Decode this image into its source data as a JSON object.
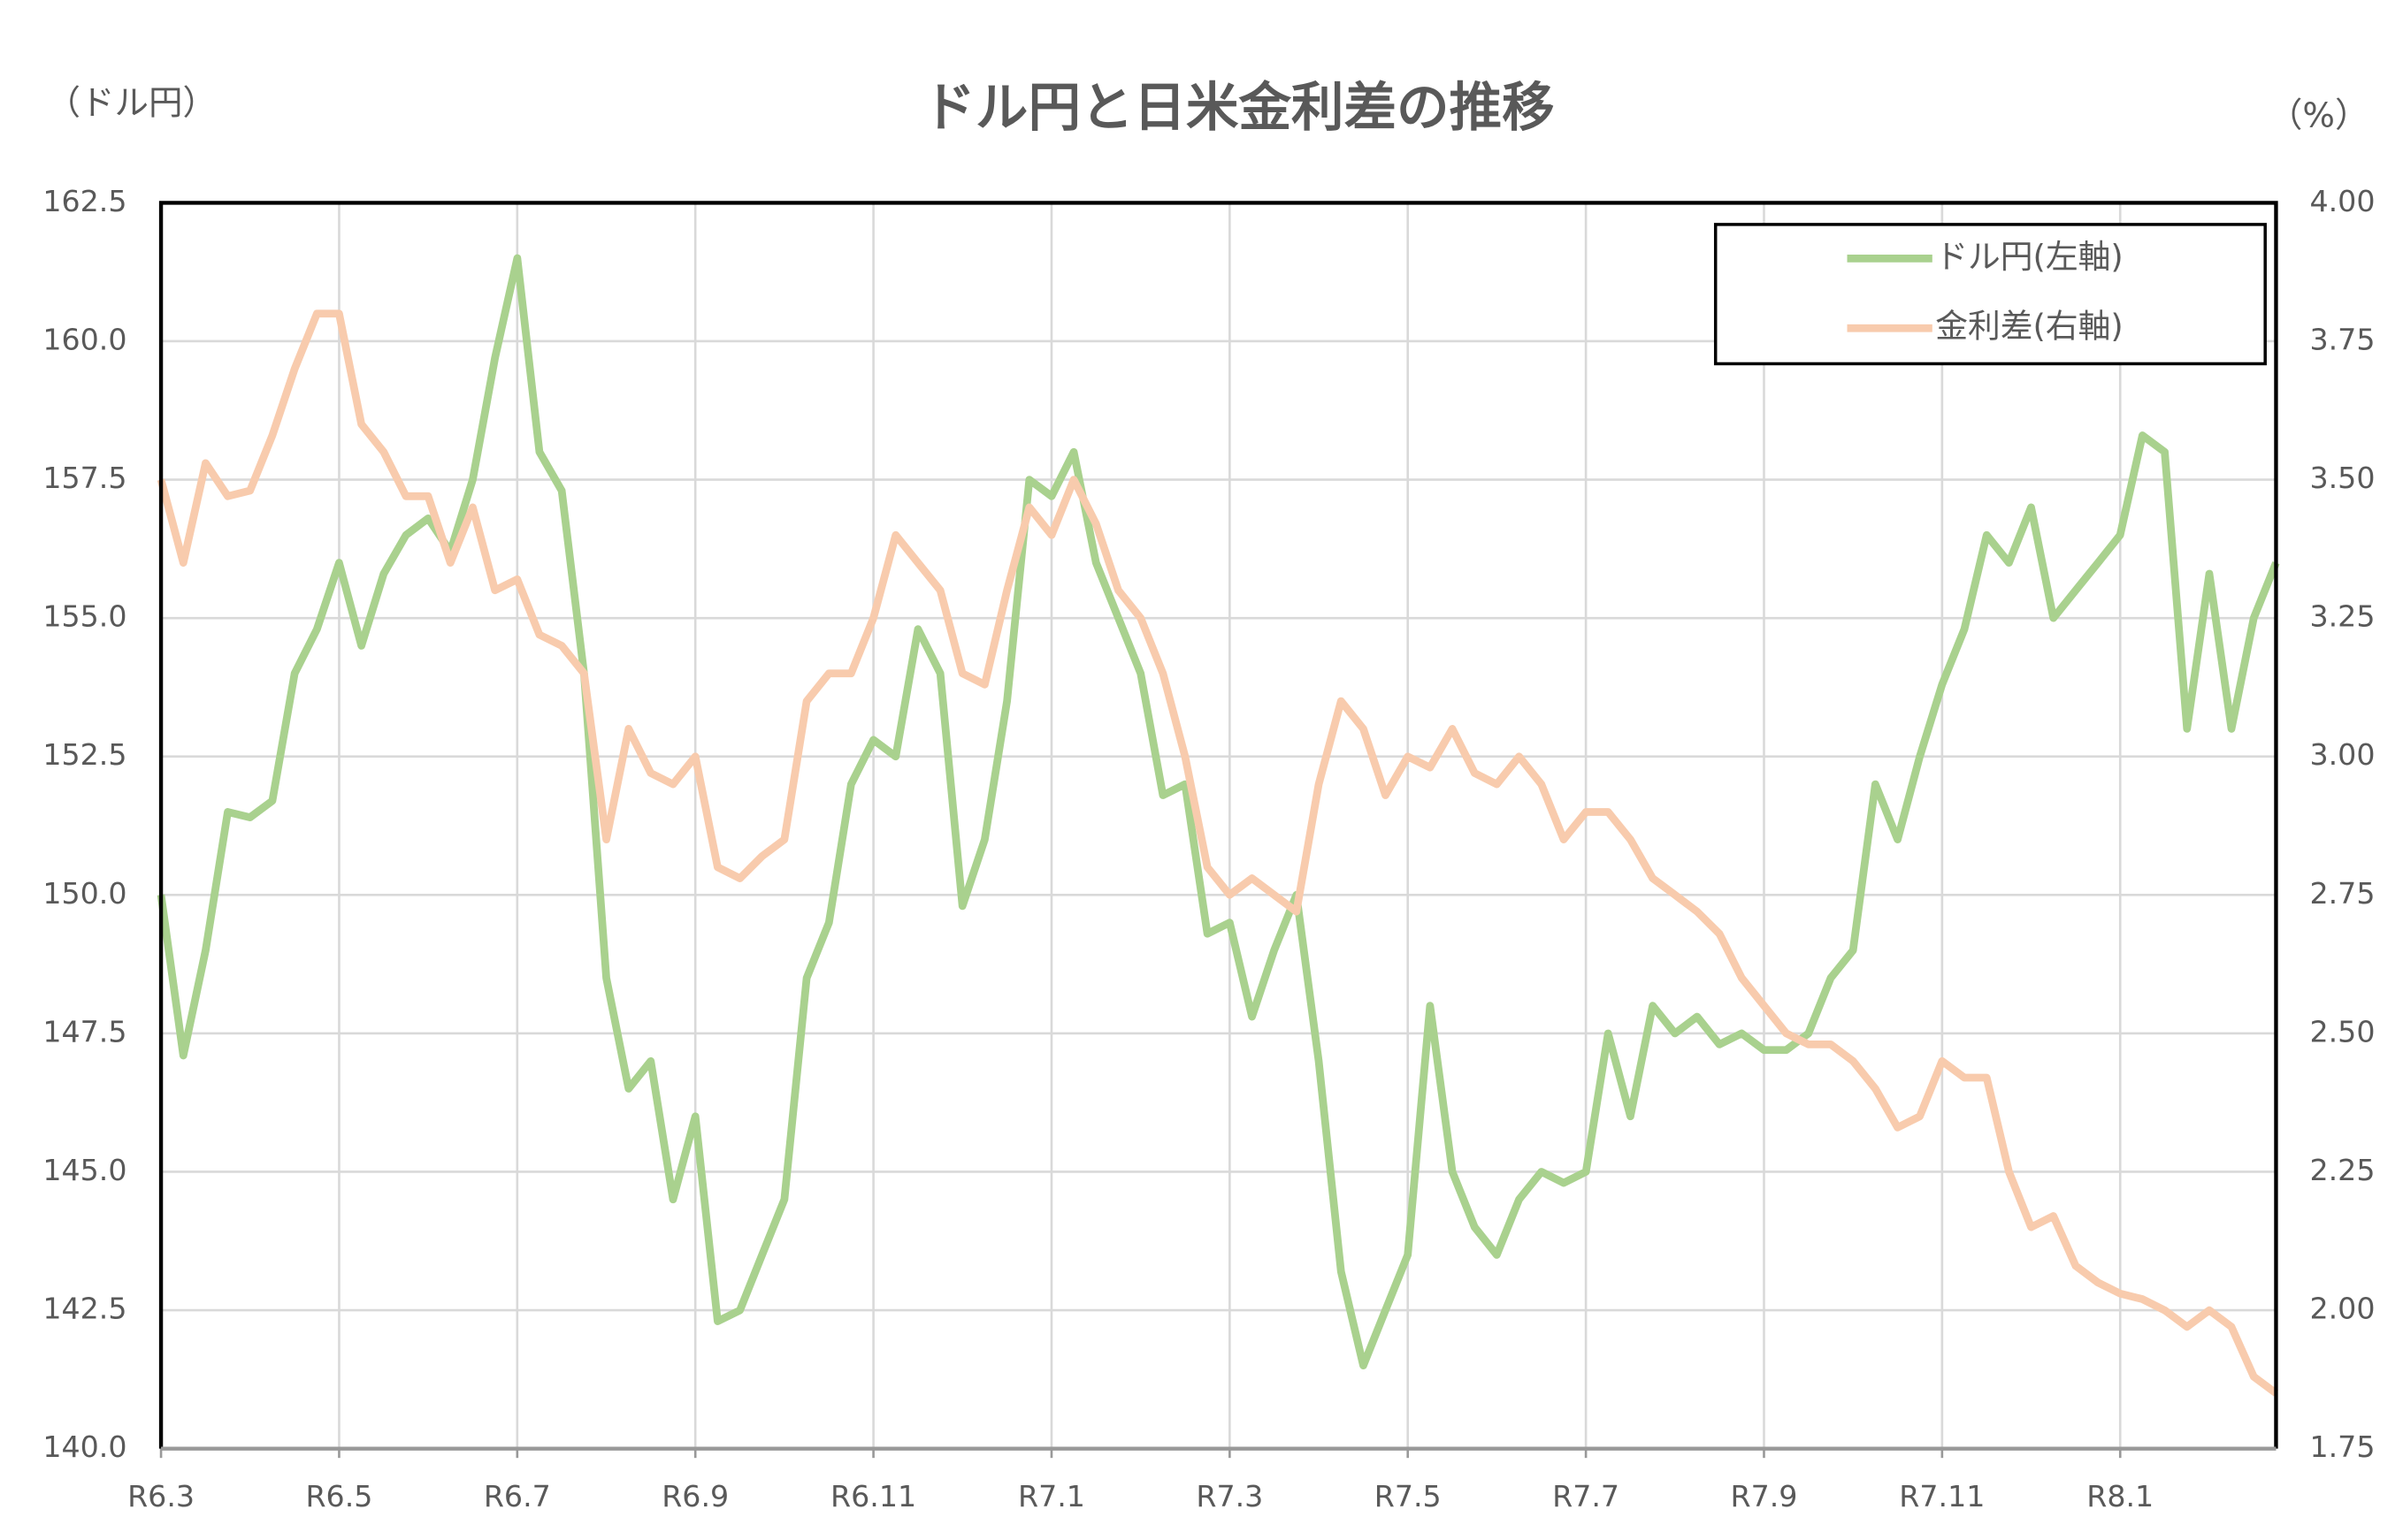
{
  "chart_data": {
    "type": "line",
    "title": "ドル円と日米金利差の推移",
    "y_axis_label": "（ドル円）",
    "y2_axis_label": "（%）",
    "categories": [
      "R6.3",
      null,
      null,
      null,
      null,
      null,
      null,
      null,
      "R6.5",
      null,
      null,
      null,
      null,
      null,
      null,
      null,
      "R6.7",
      null,
      null,
      null,
      null,
      null,
      null,
      null,
      "R6.9",
      null,
      null,
      null,
      null,
      null,
      null,
      null,
      "R6.11",
      null,
      null,
      null,
      null,
      null,
      null,
      null,
      "R7.1",
      null,
      null,
      null,
      null,
      null,
      null,
      null,
      "R7.3",
      null,
      null,
      null,
      null,
      null,
      null,
      null,
      "R7.5",
      null,
      null,
      null,
      null,
      null,
      null,
      null,
      "R7.7",
      null,
      null,
      null,
      null,
      null,
      null,
      null,
      "R7.9",
      null,
      null,
      null,
      null,
      null,
      null,
      null,
      "R7.11",
      null,
      null,
      null,
      null,
      null,
      null,
      null,
      "R8.1",
      null,
      null,
      null,
      null,
      null,
      null,
      null
    ],
    "series": [
      {
        "name": "ドル円(左軸)",
        "color": "#a9d18e",
        "axis": "y",
        "values": [
          150.0,
          147.1,
          149.0,
          151.5,
          151.4,
          151.7,
          154.0,
          154.8,
          156.0,
          154.5,
          155.8,
          156.5,
          156.8,
          156.2,
          157.5,
          159.7,
          161.5,
          158.0,
          157.3,
          154.0,
          148.5,
          146.5,
          147.0,
          144.5,
          146.0,
          142.3,
          142.5,
          143.5,
          144.5,
          148.5,
          149.5,
          152.0,
          152.8,
          152.5,
          154.8,
          154.0,
          149.8,
          151.0,
          153.5,
          157.5,
          157.2,
          158.0,
          156.0,
          155.0,
          154.0,
          151.8,
          152.0,
          149.3,
          149.5,
          147.8,
          149.0,
          150.0,
          147.0,
          143.2,
          141.5,
          142.5,
          143.5,
          148.0,
          145.0,
          144.0,
          143.5,
          144.5,
          145.0,
          144.8,
          145.0,
          147.5,
          146.0,
          148.0,
          147.5,
          147.8,
          147.3,
          147.5,
          147.2,
          147.2,
          147.5,
          148.5,
          149.0,
          152.0,
          151.0,
          152.5,
          153.8,
          154.8,
          156.5,
          156.0,
          157.0,
          155.0,
          155.5,
          156.0,
          156.5,
          158.3,
          158.0,
          153.0,
          155.8,
          153.0,
          155.0,
          156.0
        ]
      },
      {
        "name": "金利差(右軸)",
        "color": "#f8cbad",
        "axis": "y2",
        "values": [
          3.5,
          3.35,
          3.53,
          3.47,
          3.48,
          3.58,
          3.7,
          3.8,
          3.8,
          3.6,
          3.55,
          3.47,
          3.47,
          3.35,
          3.45,
          3.3,
          3.32,
          3.22,
          3.2,
          3.15,
          2.85,
          3.05,
          2.97,
          2.95,
          3.0,
          2.8,
          2.78,
          2.82,
          2.85,
          3.1,
          3.15,
          3.15,
          3.25,
          3.4,
          3.35,
          3.3,
          3.15,
          3.13,
          3.3,
          3.45,
          3.4,
          3.5,
          3.42,
          3.3,
          3.25,
          3.15,
          3.0,
          2.8,
          2.75,
          2.78,
          2.75,
          2.72,
          2.95,
          3.1,
          3.05,
          2.93,
          3.0,
          2.98,
          3.05,
          2.97,
          2.95,
          3.0,
          2.95,
          2.85,
          2.9,
          2.9,
          2.85,
          2.78,
          2.75,
          2.72,
          2.68,
          2.6,
          2.55,
          2.5,
          2.48,
          2.48,
          2.45,
          2.4,
          2.33,
          2.35,
          2.45,
          2.42,
          2.42,
          2.25,
          2.15,
          2.17,
          2.08,
          2.05,
          2.03,
          2.02,
          2.0,
          1.97,
          2.0,
          1.97,
          1.88,
          1.85
        ]
      }
    ],
    "ylim": [
      140,
      162.5
    ],
    "yticks": [
      {
        "value": 140,
        "label": "140.0"
      },
      142.5,
      {
        "value": 145,
        "label": "145.0"
      },
      147.5,
      {
        "value": 150,
        "label": "150.0"
      },
      152.5,
      {
        "value": 155,
        "label": "155.0"
      },
      157.5,
      {
        "value": 160,
        "label": "160.0"
      },
      162.5
    ],
    "y2lim": [
      1.75,
      4
    ],
    "y2ticks": [
      1.75,
      {
        "value": 2,
        "label": "2.00"
      },
      2.25,
      {
        "value": 2.5,
        "label": "2.50"
      },
      2.75,
      {
        "value": 3,
        "label": "3.00"
      },
      3.25,
      {
        "value": 3.5,
        "label": "3.50"
      },
      3.75,
      {
        "value": 4,
        "label": "4.00"
      }
    ],
    "grid": true,
    "legend": "upper right"
  }
}
